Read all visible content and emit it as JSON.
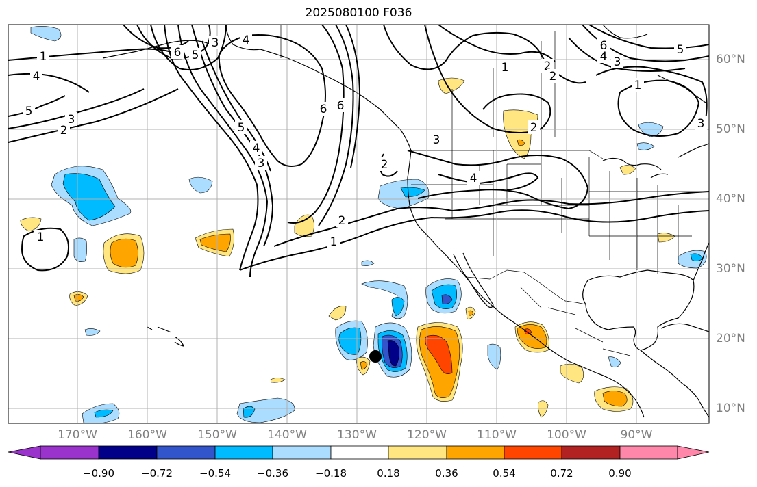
{
  "title": "2025080100 F036",
  "lat_labels": [
    "60°N",
    "50°N",
    "40°N",
    "30°N",
    "20°N",
    "10°N"
  ],
  "lon_labels": [
    "170°W",
    "160°W",
    "150°W",
    "140°W",
    "130°W",
    "120°W",
    "110°W",
    "100°W",
    "90°W"
  ],
  "colorbar": {
    "ticks": [
      "−0.90",
      "−0.72",
      "−0.54",
      "−0.36",
      "−0.18",
      "0.18",
      "0.36",
      "0.54",
      "0.72",
      "0.90"
    ],
    "colors": [
      "#9933cc",
      "#000088",
      "#3355cc",
      "#00bbff",
      "#aaddff",
      "#ffffff",
      "#ffe680",
      "#ffa500",
      "#ff4500",
      "#b22222",
      "#ff88aa"
    ]
  },
  "contour_labels": [
    "1",
    "4",
    "6",
    "5",
    "2",
    "3",
    "6",
    "5",
    "3",
    "4",
    "5",
    "4",
    "3",
    "6",
    "2",
    "1",
    "2",
    "3",
    "4",
    "2",
    "1",
    "1",
    "2",
    "2",
    "6",
    "4",
    "3",
    "5",
    "1",
    "3"
  ],
  "storm_marker": "storm-center"
}
